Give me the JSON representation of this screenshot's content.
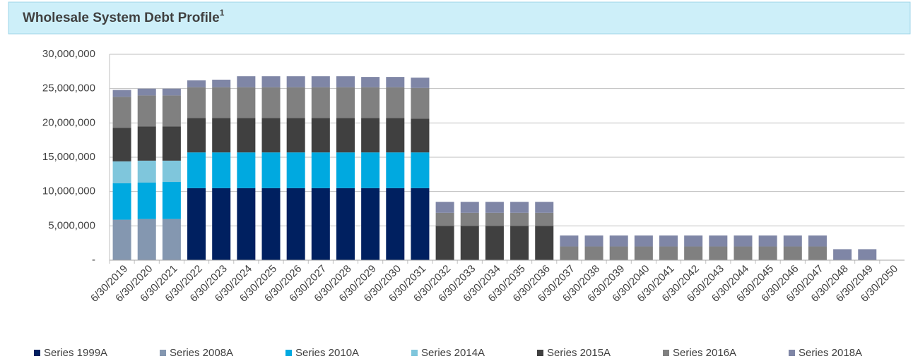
{
  "chart_data": {
    "type": "stacked_bar",
    "title": "Wholesale System Debt Profile",
    "title_superscript": "1",
    "categories": [
      "6/30/2019",
      "6/30/2020",
      "6/30/2021",
      "6/30/2022",
      "6/30/2023",
      "6/30/2024",
      "6/30/2025",
      "6/30/2026",
      "6/30/2027",
      "6/30/2028",
      "6/30/2029",
      "6/30/2030",
      "6/30/2031",
      "6/30/2032",
      "6/30/2033",
      "6/30/2034",
      "6/30/2035",
      "6/30/2036",
      "6/30/2037",
      "6/30/2038",
      "6/30/2039",
      "6/30/2040",
      "6/30/2041",
      "6/30/2042",
      "6/30/2043",
      "6/30/2044",
      "6/30/2045",
      "6/30/2046",
      "6/30/2047",
      "6/30/2048",
      "6/30/2049",
      "6/30/2050"
    ],
    "series": [
      {
        "name": "Series 1999A",
        "color": "#002060",
        "values": [
          0,
          0,
          0,
          10500000,
          10500000,
          10500000,
          10500000,
          10500000,
          10500000,
          10500000,
          10500000,
          10500000,
          10500000,
          0,
          0,
          0,
          0,
          0,
          0,
          0,
          0,
          0,
          0,
          0,
          0,
          0,
          0,
          0,
          0,
          0,
          0,
          0
        ]
      },
      {
        "name": "Series 2008A",
        "color": "#8497b0",
        "values": [
          5900000,
          6000000,
          6000000,
          0,
          0,
          0,
          0,
          0,
          0,
          0,
          0,
          0,
          0,
          0,
          0,
          0,
          0,
          0,
          0,
          0,
          0,
          0,
          0,
          0,
          0,
          0,
          0,
          0,
          0,
          0,
          0,
          0
        ]
      },
      {
        "name": "Series 2010A",
        "color": "#00a9e0",
        "values": [
          5300000,
          5300000,
          5400000,
          5200000,
          5200000,
          5200000,
          5200000,
          5200000,
          5200000,
          5200000,
          5200000,
          5200000,
          5200000,
          0,
          0,
          0,
          0,
          0,
          0,
          0,
          0,
          0,
          0,
          0,
          0,
          0,
          0,
          0,
          0,
          0,
          0,
          0
        ]
      },
      {
        "name": "Series 2014A",
        "color": "#7fc6dc",
        "values": [
          3200000,
          3200000,
          3100000,
          0,
          0,
          0,
          0,
          0,
          0,
          0,
          0,
          0,
          0,
          0,
          0,
          0,
          0,
          0,
          0,
          0,
          0,
          0,
          0,
          0,
          0,
          0,
          0,
          0,
          0,
          0,
          0,
          0
        ]
      },
      {
        "name": "Series 2015A",
        "color": "#404040",
        "values": [
          4900000,
          5000000,
          5000000,
          5000000,
          5000000,
          5000000,
          5000000,
          5000000,
          5000000,
          5000000,
          5000000,
          5000000,
          4900000,
          5000000,
          5000000,
          5000000,
          5000000,
          5000000,
          0,
          0,
          0,
          0,
          0,
          0,
          0,
          0,
          0,
          0,
          0,
          0,
          0,
          0
        ]
      },
      {
        "name": "Series 2016A",
        "color": "#808080",
        "values": [
          4500000,
          4500000,
          4500000,
          4500000,
          4500000,
          4500000,
          4500000,
          4500000,
          4500000,
          4500000,
          4500000,
          4500000,
          4500000,
          1900000,
          1900000,
          1900000,
          1900000,
          1900000,
          2000000,
          2000000,
          2000000,
          2000000,
          2000000,
          2000000,
          2000000,
          2000000,
          2000000,
          2000000,
          2000000,
          0,
          0,
          0
        ]
      },
      {
        "name": "Series 2018A",
        "color": "#7f86a6",
        "values": [
          1000000,
          1000000,
          1000000,
          1000000,
          1100000,
          1600000,
          1600000,
          1600000,
          1600000,
          1600000,
          1500000,
          1500000,
          1500000,
          1600000,
          1600000,
          1600000,
          1600000,
          1600000,
          1600000,
          1600000,
          1600000,
          1600000,
          1600000,
          1600000,
          1600000,
          1600000,
          1600000,
          1600000,
          1600000,
          1600000,
          1600000,
          0
        ]
      }
    ],
    "ylim": [
      0,
      30000000
    ],
    "yticks": [
      {
        "value": 0,
        "label": "-"
      },
      {
        "value": 5000000,
        "label": "5,000,000"
      },
      {
        "value": 10000000,
        "label": "10,000,000"
      },
      {
        "value": 15000000,
        "label": "15,000,000"
      },
      {
        "value": 20000000,
        "label": "20,000,000"
      },
      {
        "value": 25000000,
        "label": "25,000,000"
      },
      {
        "value": 30000000,
        "label": "30,000,000"
      }
    ],
    "grid": true,
    "legend": "bottom"
  }
}
